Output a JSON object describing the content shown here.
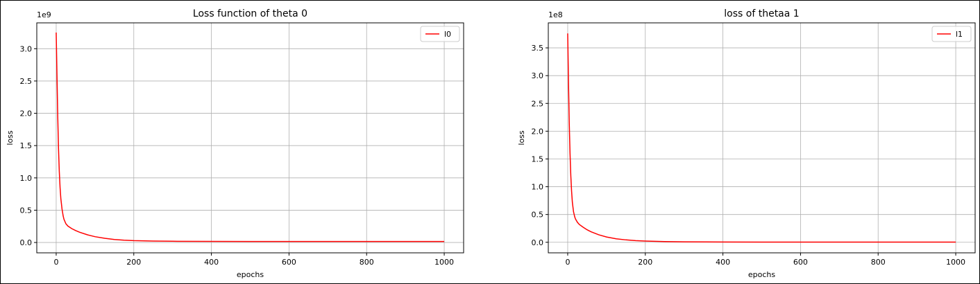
{
  "chart_data": [
    {
      "type": "line",
      "title": "Loss function of theta 0",
      "xlabel": "epochs",
      "ylabel": "loss",
      "offset_label": "1e9",
      "grid": true,
      "legend_placement": "upper-right",
      "xlim": [
        -50,
        1050
      ],
      "ylim": [
        -0.16,
        3.4
      ],
      "x_ticks": [
        0,
        200,
        400,
        600,
        800,
        1000
      ],
      "x_tick_labels": [
        "0",
        "200",
        "400",
        "600",
        "800",
        "1000"
      ],
      "y_ticks": [
        0.0,
        0.5,
        1.0,
        1.5,
        2.0,
        2.5,
        3.0
      ],
      "y_tick_labels": [
        "0.0",
        "0.5",
        "1.0",
        "1.5",
        "2.0",
        "2.5",
        "3.0"
      ],
      "series": [
        {
          "name": "l0",
          "color": "#ff0000",
          "x": [
            0,
            2,
            4,
            6,
            8,
            10,
            12,
            15,
            18,
            20,
            25,
            30,
            40,
            50,
            60,
            80,
            100,
            125,
            150,
            175,
            200,
            250,
            300,
            400,
            500,
            600,
            700,
            800,
            900,
            1000
          ],
          "y": [
            3.25,
            2.6,
            1.95,
            1.45,
            1.1,
            0.85,
            0.68,
            0.52,
            0.41,
            0.36,
            0.29,
            0.255,
            0.215,
            0.185,
            0.16,
            0.12,
            0.09,
            0.065,
            0.047,
            0.036,
            0.029,
            0.022,
            0.019,
            0.017,
            0.016,
            0.016,
            0.016,
            0.016,
            0.016,
            0.016
          ]
        }
      ]
    },
    {
      "type": "line",
      "title": "loss of thetaa 1",
      "xlabel": "epochs",
      "ylabel": "loss",
      "offset_label": "1e8",
      "grid": true,
      "legend_placement": "upper-right",
      "xlim": [
        -50,
        1050
      ],
      "ylim": [
        -0.19,
        3.95
      ],
      "x_ticks": [
        0,
        200,
        400,
        600,
        800,
        1000
      ],
      "x_tick_labels": [
        "0",
        "200",
        "400",
        "600",
        "800",
        "1000"
      ],
      "y_ticks": [
        0.0,
        0.5,
        1.0,
        1.5,
        2.0,
        2.5,
        3.0,
        3.5
      ],
      "y_tick_labels": [
        "0.0",
        "0.5",
        "1.0",
        "1.5",
        "2.0",
        "2.5",
        "3.0",
        "3.5"
      ],
      "series": [
        {
          "name": "l1",
          "color": "#ff0000",
          "x": [
            0,
            2,
            4,
            6,
            8,
            10,
            12,
            15,
            18,
            20,
            25,
            30,
            40,
            50,
            60,
            80,
            100,
            125,
            150,
            175,
            200,
            250,
            300,
            400,
            500,
            600,
            700,
            800,
            900,
            1000
          ],
          "y": [
            3.76,
            2.9,
            2.15,
            1.6,
            1.2,
            0.92,
            0.72,
            0.55,
            0.46,
            0.42,
            0.36,
            0.32,
            0.27,
            0.225,
            0.19,
            0.135,
            0.095,
            0.063,
            0.043,
            0.03,
            0.022,
            0.012,
            0.008,
            0.005,
            0.004,
            0.004,
            0.004,
            0.004,
            0.004,
            0.004
          ]
        }
      ]
    }
  ]
}
